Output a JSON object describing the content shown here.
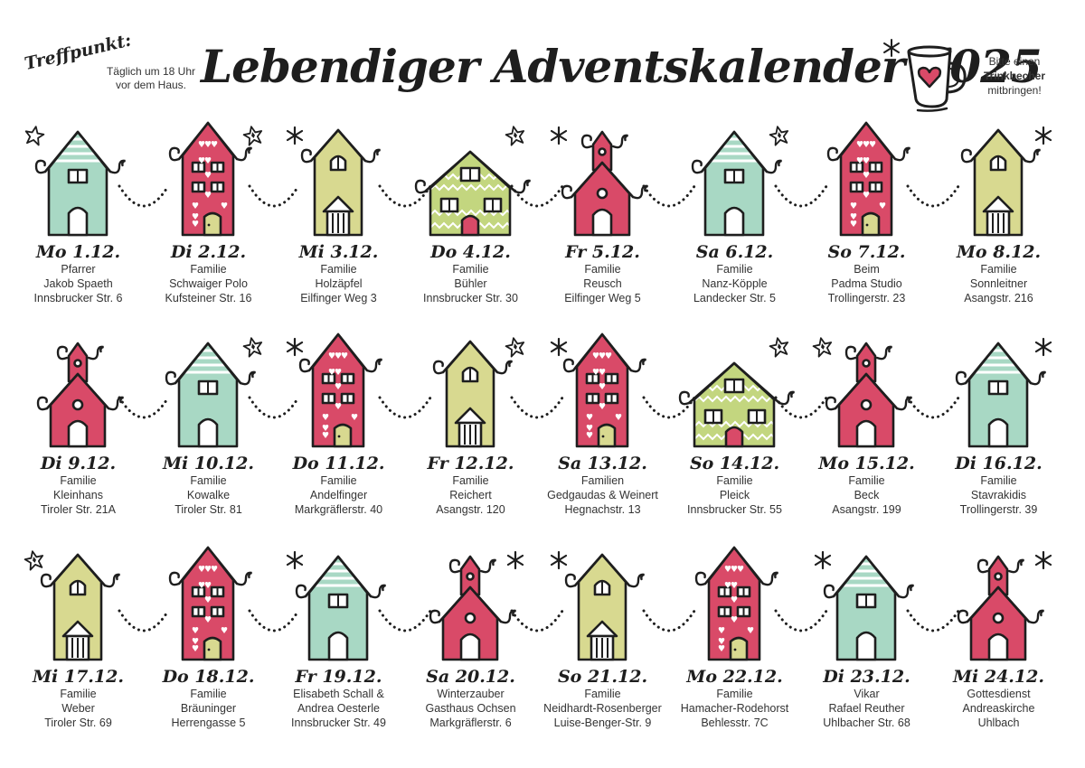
{
  "meeting": {
    "title": "Treffpunkt:",
    "line1": "Täglich um 18 Uhr",
    "line2": "vor dem Haus."
  },
  "title": "Lebendiger Adventskalender 2025",
  "cup_note": {
    "line1": "Bitte einen",
    "line2": "Trinkbecher",
    "line3": "mitbringen!"
  },
  "colors": {
    "red": "#d94a68",
    "mint": "#a8d8c4",
    "olive": "#d8d990",
    "lime": "#c3d67f",
    "ink": "#1e1e1e"
  },
  "rows": [
    [
      {
        "day": "Mo 1.12.",
        "lines": [
          "Pfarrer",
          "Jakob Spaeth",
          "Innsbrucker Str. 6"
        ],
        "house": "mint-gable",
        "deco": "star"
      },
      {
        "day": "Di 2.12.",
        "lines": [
          "Familie",
          "Schwaiger Polo",
          "Kufsteiner Str. 16"
        ],
        "house": "red-tall",
        "deco": "outline-star"
      },
      {
        "day": "Mi 3.12.",
        "lines": [
          "Familie",
          "Holzäpfel",
          "Eilfinger Weg 3"
        ],
        "house": "olive-tall",
        "deco": "asterisk"
      },
      {
        "day": "Do 4.12.",
        "lines": [
          "Familie",
          "Bühler",
          "Innsbrucker Str. 30"
        ],
        "house": "lime-wide",
        "deco": "outline-star"
      },
      {
        "day": "Fr 5.12.",
        "lines": [
          "Familie",
          "Reusch",
          "Eilfinger Weg 5"
        ],
        "house": "red-church",
        "deco": "asterisk"
      },
      {
        "day": "Sa 6.12.",
        "lines": [
          "Familie",
          "Nanz-Köpple",
          "Landecker Str. 5"
        ],
        "house": "mint-gable",
        "deco": "outline-star"
      },
      {
        "day": "So 7.12.",
        "lines": [
          "Beim",
          "Padma Studio",
          "Trollingerstr. 23"
        ],
        "house": "red-tall",
        "deco": "none"
      },
      {
        "day": "Mo 8.12.",
        "lines": [
          "Familie",
          "Sonnleitner",
          "Asangstr. 216"
        ],
        "house": "olive-tall",
        "deco": "asterisk"
      }
    ],
    [
      {
        "day": "Di 9.12.",
        "lines": [
          "Familie",
          "Kleinhans",
          "Tiroler Str. 21A"
        ],
        "house": "red-church",
        "deco": "none"
      },
      {
        "day": "Mi 10.12.",
        "lines": [
          "Familie",
          "Kowalke",
          "Tiroler Str. 81"
        ],
        "house": "mint-gable",
        "deco": "outline-star"
      },
      {
        "day": "Do 11.12.",
        "lines": [
          "Familie",
          "Andelfinger",
          "Markgräflerstr. 40"
        ],
        "house": "red-tall",
        "deco": "asterisk"
      },
      {
        "day": "Fr 12.12.",
        "lines": [
          "Familie",
          "Reichert",
          "Asangstr. 120"
        ],
        "house": "olive-tall",
        "deco": "outline-star"
      },
      {
        "day": "Sa 13.12.",
        "lines": [
          "Familien",
          "Gedgaudas & Weinert",
          "Hegnachstr. 13"
        ],
        "house": "red-tall",
        "deco": "asterisk"
      },
      {
        "day": "So 14.12.",
        "lines": [
          "Familie",
          "Pleick",
          "Innsbrucker Str. 55"
        ],
        "house": "lime-wide",
        "deco": "outline-star"
      },
      {
        "day": "Mo 15.12.",
        "lines": [
          "Familie",
          "Beck",
          "Asangstr. 199"
        ],
        "house": "red-church",
        "deco": "outline-star"
      },
      {
        "day": "Di 16.12.",
        "lines": [
          "Familie",
          "Stavrakidis",
          "Trollingerstr. 39"
        ],
        "house": "mint-gable",
        "deco": "asterisk"
      }
    ],
    [
      {
        "day": "Mi 17.12.",
        "lines": [
          "Familie",
          "Weber",
          "Tiroler Str. 69"
        ],
        "house": "olive-tall",
        "deco": "outline-star"
      },
      {
        "day": "Do 18.12.",
        "lines": [
          "Familie",
          "Bräuninger",
          "Herrengasse 5"
        ],
        "house": "red-tall",
        "deco": "none"
      },
      {
        "day": "Fr 19.12.",
        "lines": [
          "Elisabeth Schall &",
          "Andrea Oesterle",
          "Innsbrucker Str. 49"
        ],
        "house": "mint-gable",
        "deco": "asterisk"
      },
      {
        "day": "Sa 20.12.",
        "lines": [
          "Winterzauber",
          "Gasthaus Ochsen",
          "Markgräflerstr. 6"
        ],
        "house": "red-church",
        "deco": "asterisk"
      },
      {
        "day": "So 21.12.",
        "lines": [
          "Familie",
          "Neidhardt-Rosenberger",
          "Luise-Benger-Str. 9"
        ],
        "house": "olive-tall",
        "deco": "asterisk"
      },
      {
        "day": "Mo 22.12.",
        "lines": [
          "Familie",
          "Hamacher-Rodehorst",
          "Behlesstr. 7C"
        ],
        "house": "red-tall",
        "deco": "none"
      },
      {
        "day": "Di 23.12.",
        "lines": [
          "Vikar",
          "Rafael Reuther",
          "Uhlbacher Str. 68"
        ],
        "house": "mint-gable",
        "deco": "asterisk"
      },
      {
        "day": "Mi 24.12.",
        "lines": [
          "Gottesdienst",
          "Andreaskirche",
          "Uhlbach"
        ],
        "house": "red-church",
        "deco": "asterisk"
      }
    ]
  ]
}
